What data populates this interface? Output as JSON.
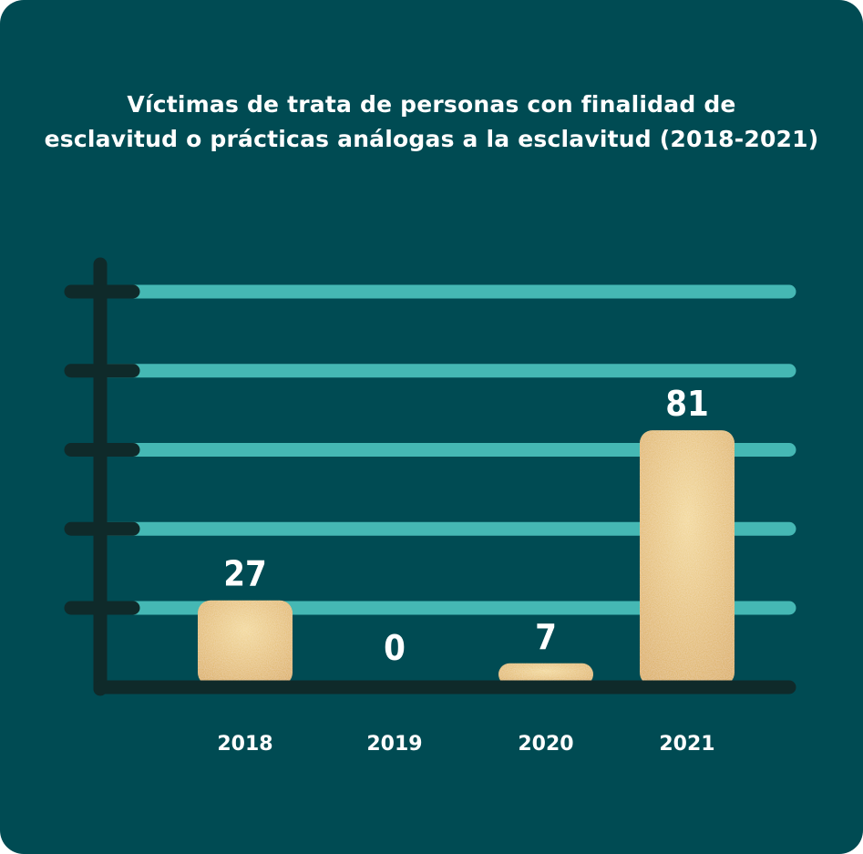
{
  "chart_data": {
    "type": "bar",
    "title_lines": [
      "Víctimas de trata de personas con finalidad de",
      "esclavitud o prácticas análogas a la esclavitud (2018-2021)"
    ],
    "categories": [
      "2018",
      "2019",
      "2020",
      "2021"
    ],
    "values": [
      27,
      0,
      7,
      81
    ],
    "value_labels": [
      "27",
      "0",
      "7",
      "81"
    ],
    "ylim": [
      0,
      125
    ],
    "grid": true,
    "colors": {
      "background": "#004b53",
      "bar": "#d9a74a",
      "bar_highlight": "#f2d58e",
      "gridline": "#45b8b4",
      "axis": "#0f2a2a",
      "text": "#ffffff"
    }
  }
}
